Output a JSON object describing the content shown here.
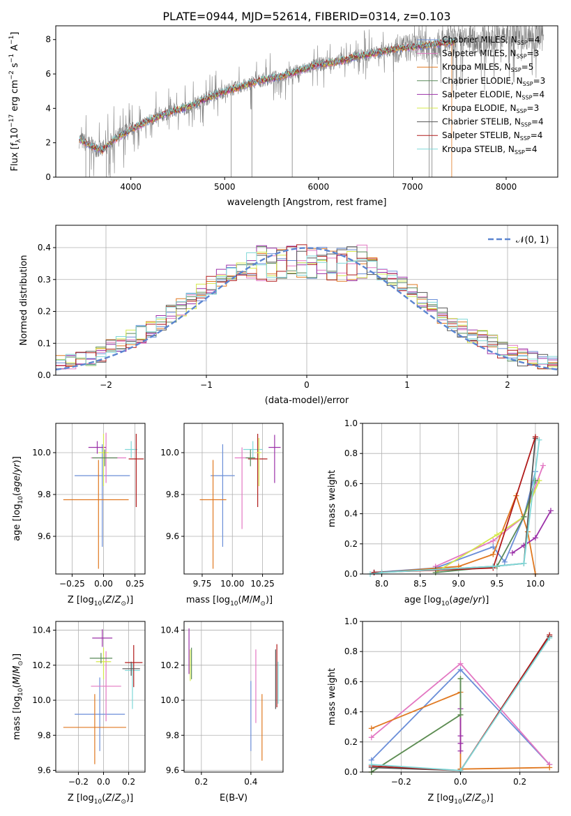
{
  "figure": {
    "title": "PLATE=0944, MJD=52614, FIBERID=0314, z=0.103"
  },
  "legend_entries": [
    {
      "label": "Chabrier MILES, N",
      "sub": "SSP",
      "suffix": "=4",
      "color": "#6a8ed8"
    },
    {
      "label": "Salpeter MILES, N",
      "sub": "SSP",
      "suffix": "=3",
      "color": "#e377c2"
    },
    {
      "label": "Kroupa MILES, N",
      "sub": "SSP",
      "suffix": "=5",
      "color": "#e07820"
    },
    {
      "label": "Chabrier ELODIE, N",
      "sub": "SSP",
      "suffix": "=3",
      "color": "#5a8a5a"
    },
    {
      "label": "Salpeter ELODIE, N",
      "sub": "SSP",
      "suffix": "=4",
      "color": "#9b30a8"
    },
    {
      "label": "Kroupa ELODIE, N",
      "sub": "SSP",
      "suffix": "=3",
      "color": "#d4e84a"
    },
    {
      "label": "Chabrier STELIB, N",
      "sub": "SSP",
      "suffix": "=4",
      "color": "#555555"
    },
    {
      "label": "Salpeter STELIB, N",
      "sub": "SSP",
      "suffix": "=4",
      "color": "#b01a1a"
    },
    {
      "label": "Kroupa STELIB, N",
      "sub": "SSP",
      "suffix": "=4",
      "color": "#7fd8d8"
    }
  ],
  "chart_data": [
    {
      "id": "spectrum",
      "type": "line",
      "xlabel": "wavelength [Angstrom, rest frame]",
      "ylabel": "Flux [f",
      "ylabel_parts": [
        "Flux [f",
        "λ",
        "10",
        "−17",
        " erg cm",
        "−2",
        " s",
        "−1",
        " A",
        "−1",
        "]"
      ],
      "xlim": [
        3200,
        8550
      ],
      "ylim": [
        0,
        8.8
      ],
      "xticks": [
        4000,
        5000,
        6000,
        7000,
        8000
      ],
      "yticks": [
        0,
        2,
        4,
        6,
        8
      ],
      "x": [
        3450,
        3500,
        3600,
        3700,
        3800,
        3900,
        4000,
        4200,
        4400,
        4600,
        4800,
        5000,
        5200,
        5400,
        5600,
        5800,
        6000,
        6200,
        6400,
        6600,
        6800,
        7000,
        7200,
        7400,
        7600,
        7800,
        8000,
        8200,
        8400
      ],
      "model": [
        2.2,
        2.05,
        1.75,
        1.55,
        2.1,
        2.45,
        2.75,
        3.3,
        3.75,
        4.05,
        4.55,
        5.0,
        5.3,
        5.65,
        5.85,
        6.2,
        6.55,
        6.7,
        7.0,
        7.2,
        7.45,
        7.55,
        7.7,
        7.85,
        7.9,
        8.0,
        8.2,
        8.25,
        8.15
      ]
    },
    {
      "id": "residuals",
      "type": "histogram",
      "xlabel": "(data-model)/error",
      "ylabel": "Normed distribution",
      "xlim": [
        -2.5,
        2.5
      ],
      "ylim": [
        0,
        0.47
      ],
      "xticks": [
        -2,
        -1,
        0,
        1,
        2
      ],
      "yticks": [
        0.0,
        0.1,
        0.2,
        0.3,
        0.4
      ],
      "legend_label": "𝒩(0, 1)",
      "bin_width": 0.1
    },
    {
      "id": "age-vs-Z",
      "type": "errorbar",
      "xlabel": "Z [log",
      "ylabel": "age  [log",
      "xlim": [
        -0.38,
        0.33
      ],
      "ylim": [
        9.42,
        10.14
      ],
      "xticks": [
        -0.25,
        0.0,
        0.25
      ],
      "xtick_labels": [
        "−0.25",
        "0.00",
        "0.25"
      ],
      "yticks": [
        9.6,
        9.8,
        10.0
      ],
      "points": [
        {
          "x": -0.01,
          "y": 9.89,
          "xerr": 0.22,
          "yerr": [
            0.34,
            0.15
          ],
          "color": "#6a8ed8"
        },
        {
          "x": -0.04,
          "y": 9.775,
          "xerr": [
            0.28,
            0.24
          ],
          "yerr": [
            0.33,
            0.19
          ],
          "color": "#e07820"
        },
        {
          "x": 0.02,
          "y": 9.975,
          "xerr": [
            0.12,
            0.16
          ],
          "yerr": [
            0.12,
            0.12
          ],
          "color": "#e377c2"
        },
        {
          "x": 0.22,
          "y": 10.015,
          "xerr": 0.05,
          "yerr": 0.04,
          "color": "#7fd8d8"
        },
        {
          "x": 0.26,
          "y": 9.97,
          "xerr": 0.06,
          "yerr": [
            0.23,
            0.12
          ],
          "color": "#b01a1a"
        },
        {
          "x": -0.05,
          "y": 10.025,
          "xerr": 0.07,
          "yerr": 0.03,
          "color": "#9b30a8"
        },
        {
          "x": 0.0,
          "y": 10.0,
          "xerr": 0.04,
          "yerr": [
            0.16,
            0.09
          ],
          "color": "#d4e84a"
        },
        {
          "x": 0.01,
          "y": 9.975,
          "xerr": 0.1,
          "yerr": 0.04,
          "color": "#5a8a5a"
        }
      ]
    },
    {
      "id": "age-vs-mass",
      "type": "errorbar",
      "xlabel": "mass [log",
      "xlim": [
        9.6,
        10.42
      ],
      "ylim": [
        9.42,
        10.14
      ],
      "xticks": [
        9.75,
        10.0,
        10.25
      ],
      "xtick_labels": [
        "9.75",
        "10.00",
        "10.25"
      ],
      "yticks": [
        9.6,
        9.8,
        10.0
      ],
      "points": [
        {
          "x": 9.92,
          "y": 9.89,
          "xerr": 0.1,
          "yerr": [
            0.34,
            0.15
          ],
          "color": "#6a8ed8"
        },
        {
          "x": 9.84,
          "y": 9.775,
          "xerr": 0.11,
          "yerr": [
            0.33,
            0.19
          ],
          "color": "#e07820"
        },
        {
          "x": 10.08,
          "y": 9.975,
          "xerr": 0.06,
          "yerr": [
            0.34,
            0.05
          ],
          "color": "#e377c2"
        },
        {
          "x": 10.17,
          "y": 10.015,
          "xerr": 0.08,
          "yerr": 0.04,
          "color": "#7fd8d8"
        },
        {
          "x": 10.21,
          "y": 9.97,
          "xerr": 0.08,
          "yerr": [
            0.23,
            0.12
          ],
          "color": "#b01a1a"
        },
        {
          "x": 10.35,
          "y": 10.025,
          "xerr": 0.05,
          "yerr": [
            0.17,
            0.06
          ],
          "color": "#9b30a8"
        },
        {
          "x": 10.22,
          "y": 10.0,
          "xerr": 0.02,
          "yerr": [
            0.16,
            0.07
          ],
          "color": "#d4e84a"
        },
        {
          "x": 10.15,
          "y": 9.975,
          "xerr": 0.04,
          "yerr": 0.04,
          "color": "#5a8a5a"
        }
      ]
    },
    {
      "id": "massweight-vs-age",
      "type": "line",
      "xlabel": "age  [log",
      "ylabel": "mass weight",
      "xlim": [
        7.75,
        10.3
      ],
      "ylim": [
        0,
        1.0
      ],
      "xticks": [
        8.0,
        8.5,
        9.0,
        9.5,
        10.0
      ],
      "xtick_labels": [
        "8.0",
        "8.5",
        "9.0",
        "9.5",
        "10.0"
      ],
      "yticks": [
        0.0,
        0.2,
        0.4,
        0.6,
        0.8,
        1.0
      ],
      "series": [
        {
          "color": "#6a8ed8",
          "x": [
            7.9,
            8.7,
            9.45,
            9.6,
            9.85,
            10.0
          ],
          "y": [
            0.01,
            0.04,
            0.18,
            0.08,
            0.38,
            0.68
          ]
        },
        {
          "color": "#e377c2",
          "x": [
            8.7,
            9.45,
            9.85,
            10.1
          ],
          "y": [
            0.05,
            0.22,
            0.38,
            0.72
          ]
        },
        {
          "color": "#e07820",
          "x": [
            8.0,
            9.0,
            9.45,
            9.75,
            9.9,
            10.0
          ],
          "y": [
            0.01,
            0.05,
            0.13,
            0.52,
            0.28,
            0.0
          ]
        },
        {
          "color": "#9b30a8",
          "x": [
            9.7,
            9.85,
            10.0,
            10.2
          ],
          "y": [
            0.14,
            0.19,
            0.24,
            0.42
          ]
        },
        {
          "color": "#d4e84a",
          "x": [
            8.7,
            9.5,
            9.85,
            10.05
          ],
          "y": [
            0.01,
            0.26,
            0.38,
            0.62
          ]
        },
        {
          "color": "#5a8a5a",
          "x": [
            8.7,
            9.5,
            9.85,
            10.0
          ],
          "y": [
            0.01,
            0.05,
            0.38,
            0.62
          ]
        },
        {
          "color": "#555555",
          "x": [
            7.9,
            8.7,
            9.45,
            9.85,
            10.0
          ],
          "y": [
            0.01,
            0.03,
            0.05,
            0.07,
            0.9
          ]
        },
        {
          "color": "#b01a1a",
          "x": [
            7.9,
            9.45,
            10.0
          ],
          "y": [
            0.01,
            0.04,
            0.91
          ]
        },
        {
          "color": "#7fd8d8",
          "x": [
            7.85,
            8.0,
            9.45,
            9.85,
            10.05
          ],
          "y": [
            0.0,
            0.01,
            0.05,
            0.07,
            0.89
          ]
        }
      ]
    },
    {
      "id": "mass-vs-Z",
      "type": "errorbar",
      "xlabel": "Z [log",
      "ylabel": "mass [log",
      "xlim": [
        -0.38,
        0.33
      ],
      "ylim": [
        9.59,
        10.45
      ],
      "xticks": [
        -0.2,
        0.0,
        0.2
      ],
      "xtick_labels": [
        "−0.2",
        "0.0",
        "0.2"
      ],
      "yticks": [
        9.6,
        9.8,
        10.0,
        10.2,
        10.4
      ],
      "points": [
        {
          "x": -0.03,
          "y": 9.92,
          "xerr": 0.2,
          "yerr": 0.21,
          "color": "#6a8ed8"
        },
        {
          "x": -0.07,
          "y": 9.845,
          "xerr": 0.25,
          "yerr": [
            0.21,
            0.19
          ],
          "color": "#e07820"
        },
        {
          "x": 0.02,
          "y": 10.08,
          "xerr": 0.12,
          "yerr": 0.2,
          "color": "#e377c2"
        },
        {
          "x": 0.23,
          "y": 10.17,
          "xerr": 0.06,
          "yerr": [
            0.22,
            0.04
          ],
          "color": "#7fd8d8"
        },
        {
          "x": 0.24,
          "y": 10.215,
          "xerr": 0.07,
          "yerr": [
            0.14,
            0.1
          ],
          "color": "#b01a1a"
        },
        {
          "x": -0.01,
          "y": 10.355,
          "xerr": 0.08,
          "yerr": 0.05,
          "color": "#9b30a8"
        },
        {
          "x": 0.0,
          "y": 10.22,
          "xerr": 0.06,
          "yerr": [
            0.1,
            0.08
          ],
          "color": "#d4e84a"
        },
        {
          "x": -0.02,
          "y": 10.24,
          "xerr": 0.09,
          "yerr": 0.03,
          "color": "#5a8a5a"
        },
        {
          "x": 0.22,
          "y": 10.18,
          "xerr": 0.07,
          "yerr": 0.04,
          "color": "#555555"
        }
      ]
    },
    {
      "id": "mass-vs-EBV",
      "type": "errorbar",
      "xlabel": "E(B-V)",
      "xlim": [
        0.13,
        0.53
      ],
      "ylim": [
        9.59,
        10.45
      ],
      "xticks": [
        0.2,
        0.4
      ],
      "xtick_labels": [
        "0.2",
        "0.4"
      ],
      "yticks": [
        9.6,
        9.8,
        10.0,
        10.2,
        10.4
      ],
      "points": [
        {
          "x": 0.15,
          "y": 10.28,
          "yerr": 0.13,
          "color": "#9b30a8"
        },
        {
          "x": 0.155,
          "y": 10.2,
          "yerr": 0.09,
          "color": "#d4e84a"
        },
        {
          "x": 0.16,
          "y": 10.21,
          "yerr": 0.09,
          "color": "#5a8a5a"
        },
        {
          "x": 0.4,
          "y": 9.91,
          "yerr": 0.2,
          "color": "#6a8ed8"
        },
        {
          "x": 0.42,
          "y": 10.08,
          "yerr": 0.21,
          "color": "#e377c2"
        },
        {
          "x": 0.445,
          "y": 9.845,
          "yerr": 0.19,
          "color": "#e07820"
        },
        {
          "x": 0.5,
          "y": 10.12,
          "yerr": 0.17,
          "color": "#555555"
        },
        {
          "x": 0.505,
          "y": 10.14,
          "yerr": 0.18,
          "color": "#b01a1a"
        },
        {
          "x": 0.51,
          "y": 10.1,
          "yerr": 0.12,
          "color": "#7fd8d8"
        }
      ]
    },
    {
      "id": "massweight-vs-Z",
      "type": "line",
      "xlabel": "Z [log",
      "ylabel": "mass weight",
      "xlim": [
        -0.33,
        0.33
      ],
      "ylim": [
        0,
        1.0
      ],
      "xticks": [
        -0.2,
        0.0,
        0.2
      ],
      "xtick_labels": [
        "−0.2",
        "0.0",
        "0.2"
      ],
      "yticks": [
        0.0,
        0.2,
        0.4,
        0.6,
        0.8,
        1.0
      ],
      "series": [
        {
          "color": "#6a8ed8",
          "x": [
            -0.3,
            0.0,
            0.3
          ],
          "y": [
            0.08,
            0.68,
            0.05
          ]
        },
        {
          "color": "#e377c2",
          "x": [
            -0.3,
            0.0,
            0.3
          ],
          "y": [
            0.23,
            0.72,
            0.05
          ]
        },
        {
          "color": "#e07820",
          "x": [
            -0.3,
            0.0,
            0.0,
            0.3
          ],
          "y": [
            0.29,
            0.53,
            0.02,
            0.03
          ]
        },
        {
          "color": "#9b30a8",
          "x": [
            0.0,
            0.0,
            0.0,
            0.0
          ],
          "y": [
            0.42,
            0.24,
            0.19,
            0.14
          ]
        },
        {
          "color": "#d4e84a",
          "x": [
            -0.3,
            0.0,
            0.0
          ],
          "y": [
            0.0,
            0.38,
            0.62
          ]
        },
        {
          "color": "#5a8a5a",
          "x": [
            -0.3,
            0.0,
            0.0
          ],
          "y": [
            0.0,
            0.38,
            0.62
          ]
        },
        {
          "color": "#555555",
          "x": [
            -0.3,
            0.0,
            0.3
          ],
          "y": [
            0.03,
            0.01,
            0.9
          ]
        },
        {
          "color": "#b01a1a",
          "x": [
            -0.3,
            0.0,
            0.3
          ],
          "y": [
            0.04,
            0.01,
            0.91
          ]
        },
        {
          "color": "#7fd8d8",
          "x": [
            -0.3,
            0.0,
            0.3
          ],
          "y": [
            0.05,
            0.01,
            0.89
          ]
        }
      ]
    }
  ]
}
